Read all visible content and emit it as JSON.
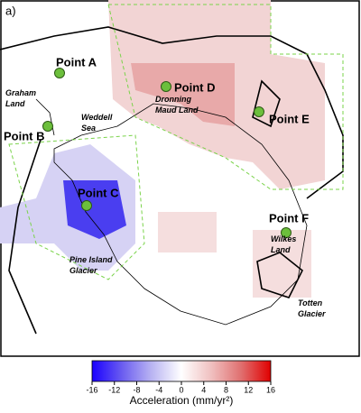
{
  "panel_label": "a)",
  "points": [
    {
      "label": "Point A"
    },
    {
      "label": "Point B"
    },
    {
      "label": "Point C"
    },
    {
      "label": "Point D"
    },
    {
      "label": "Point E"
    },
    {
      "label": "Point F"
    }
  ],
  "places": [
    {
      "lines": [
        "Graham",
        "Land"
      ]
    },
    {
      "lines": [
        "Weddell",
        "Sea"
      ]
    },
    {
      "lines": [
        "Dronning",
        "Maud Land"
      ]
    },
    {
      "lines": [
        "Pine Island",
        "Glacier"
      ]
    },
    {
      "lines": [
        "Wilkes",
        "Land"
      ]
    },
    {
      "lines": [
        "Totten",
        "Glacier"
      ]
    }
  ],
  "colorbar": {
    "label": "Acceleration (mm/yr²)",
    "lim": [
      -16,
      16
    ],
    "ticks": [
      -16,
      -12,
      -8,
      -4,
      0,
      4,
      8,
      12,
      16
    ],
    "colors": [
      "#1a00ff",
      "#6a5cf0",
      "#b9b4f2",
      "#ffffff",
      "#f0c0c0",
      "#e07070",
      "#e00000"
    ]
  }
}
